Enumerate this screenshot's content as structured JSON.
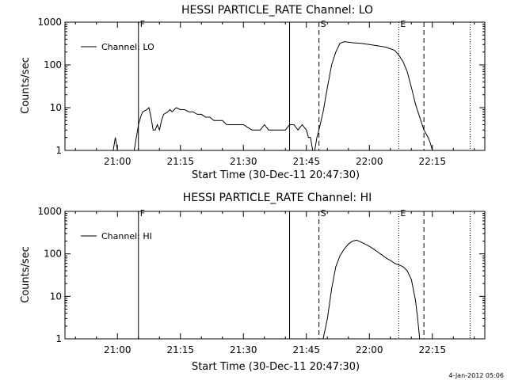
{
  "chart_data": [
    {
      "type": "line",
      "title": "HESSI PARTICLE_RATE Channel: LO",
      "xlabel": "Start Time (30-Dec-11 20:47:30)",
      "ylabel": "Counts/sec",
      "y_scale": "log",
      "ylim": [
        1,
        1000
      ],
      "xlim": [
        "20:47:30",
        "22:27:30"
      ],
      "x_ticks": [
        "21:00",
        "21:15",
        "21:30",
        "21:45",
        "22:00",
        "22:15"
      ],
      "y_ticks": [
        "1",
        "10",
        "100",
        "1000"
      ],
      "grid": false,
      "legend": {
        "position": "top-left",
        "entries": [
          "Channel: LO"
        ]
      },
      "markers": [
        {
          "label": "F",
          "time": "21:05",
          "style": "solid"
        },
        {
          "label": "",
          "time": "21:41",
          "style": "solid"
        },
        {
          "label": "S",
          "time": "21:48",
          "style": "dashed"
        },
        {
          "label": "E",
          "time": "22:07",
          "style": "dotted"
        },
        {
          "label": "",
          "time": "22:13",
          "style": "dashed"
        },
        {
          "label": "",
          "time": "22:24",
          "style": "dotted"
        }
      ],
      "series": [
        {
          "name": "Channel: LO",
          "x": [
            "20:59:00",
            "20:59:30",
            "21:00:00",
            "21:04:00",
            "21:04:30",
            "21:05:00",
            "21:05:30",
            "21:06:00",
            "21:07:00",
            "21:07:30",
            "21:08:00",
            "21:08:30",
            "21:09:00",
            "21:09:30",
            "21:10:00",
            "21:10:30",
            "21:11:00",
            "21:12:00",
            "21:12:30",
            "21:13:00",
            "21:14:00",
            "21:15:00",
            "21:16:00",
            "21:17:00",
            "21:18:00",
            "21:19:00",
            "21:20:00",
            "21:21:00",
            "21:22:00",
            "21:23:00",
            "21:24:00",
            "21:25:00",
            "21:26:00",
            "21:28:00",
            "21:30:00",
            "21:32:00",
            "21:34:00",
            "21:35:00",
            "21:36:00",
            "21:38:00",
            "21:40:00",
            "21:41:00",
            "21:42:00",
            "21:43:00",
            "21:44:00",
            "21:45:00",
            "21:45:30",
            "21:46:00",
            "21:46:30",
            "21:47:00",
            "21:47:30",
            "21:48:00",
            "21:49:00",
            "21:50:00",
            "21:51:00",
            "21:52:00",
            "21:53:00",
            "21:54:00",
            "21:55:00",
            "21:56:00",
            "21:58:00",
            "22:00:00",
            "22:02:00",
            "22:04:00",
            "22:06:00",
            "22:07:00",
            "22:08:00",
            "22:09:00",
            "22:10:00",
            "22:11:00",
            "22:12:00",
            "22:13:00",
            "22:14:00",
            "22:14:30",
            "22:15:00",
            "22:16:00"
          ],
          "values": [
            1,
            2,
            1,
            1,
            2,
            4,
            6,
            8,
            9,
            10,
            6,
            3,
            3,
            4,
            3,
            5,
            7,
            8,
            9,
            8,
            10,
            9,
            9,
            8,
            8,
            7,
            7,
            6,
            6,
            5,
            5,
            5,
            4,
            4,
            4,
            3,
            3,
            4,
            3,
            3,
            3,
            4,
            4,
            3,
            4,
            3,
            2,
            2,
            1,
            1,
            2,
            3,
            8,
            30,
            100,
            200,
            320,
            350,
            340,
            330,
            320,
            300,
            280,
            260,
            220,
            170,
            120,
            70,
            30,
            12,
            6,
            3,
            2,
            1.5,
            1,
            1
          ]
        }
      ]
    },
    {
      "type": "line",
      "title": "HESSI PARTICLE_RATE Channel: HI",
      "xlabel": "Start Time (30-Dec-11 20:47:30)",
      "ylabel": "Counts/sec",
      "y_scale": "log",
      "ylim": [
        1,
        1000
      ],
      "xlim": [
        "20:47:30",
        "22:27:30"
      ],
      "x_ticks": [
        "21:00",
        "21:15",
        "21:30",
        "21:45",
        "22:00",
        "22:15"
      ],
      "y_ticks": [
        "1",
        "10",
        "100",
        "1000"
      ],
      "grid": false,
      "legend": {
        "position": "top-left",
        "entries": [
          "Channel: HI"
        ]
      },
      "markers": [
        {
          "label": "F",
          "time": "21:05",
          "style": "solid"
        },
        {
          "label": "",
          "time": "21:41",
          "style": "solid"
        },
        {
          "label": "S",
          "time": "21:48",
          "style": "dashed"
        },
        {
          "label": "E",
          "time": "22:07",
          "style": "dotted"
        },
        {
          "label": "",
          "time": "22:13",
          "style": "dashed"
        },
        {
          "label": "",
          "time": "22:24",
          "style": "dotted"
        }
      ],
      "series": [
        {
          "name": "Channel: HI",
          "x": [
            "21:49:00",
            "21:50:00",
            "21:51:00",
            "21:52:00",
            "21:53:00",
            "21:54:00",
            "21:55:00",
            "21:56:00",
            "21:57:00",
            "21:58:00",
            "21:59:00",
            "22:00:00",
            "22:01:00",
            "22:02:00",
            "22:03:00",
            "22:04:00",
            "22:05:00",
            "22:06:00",
            "22:07:00",
            "22:08:00",
            "22:09:00",
            "22:10:00",
            "22:11:00",
            "22:11:30",
            "22:12:00"
          ],
          "values": [
            1,
            3,
            15,
            50,
            90,
            130,
            170,
            200,
            210,
            190,
            170,
            150,
            130,
            110,
            95,
            80,
            70,
            60,
            55,
            50,
            40,
            25,
            8,
            3,
            1
          ]
        }
      ]
    }
  ],
  "colors": {
    "background": "#ffffff",
    "line": "#000000"
  },
  "footer": {
    "timestamp": "4-Jan-2012 05:06"
  }
}
